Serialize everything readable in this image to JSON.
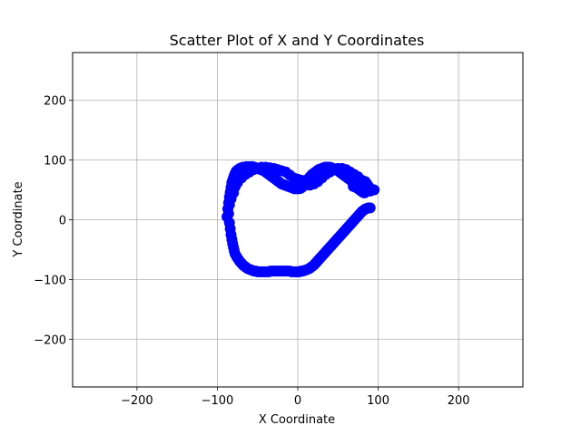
{
  "chart_data": {
    "type": "scatter",
    "title": "Scatter Plot of X and Y Coordinates",
    "xlabel": "X Coordinate",
    "ylabel": "Y Coordinate",
    "xlim": [
      -280,
      280
    ],
    "ylim": [
      -280,
      280
    ],
    "xticks": [
      -200,
      -100,
      0,
      100,
      200
    ],
    "yticks": [
      -200,
      -100,
      0,
      100,
      200
    ],
    "xtick_labels": [
      "−200",
      "−100",
      "0",
      "100",
      "200"
    ],
    "ytick_labels": [
      "−200",
      "−100",
      "0",
      "100",
      "200"
    ],
    "grid": true,
    "marker_color": "#0000ff",
    "series": [
      {
        "x": [
          -88,
          -87,
          -86,
          -85,
          -84,
          -83,
          -82,
          -81,
          -80,
          -79,
          -78,
          -77,
          -76,
          -74,
          -72,
          -70,
          -68,
          -66,
          -64,
          -62,
          -60,
          -58,
          -56,
          -54,
          -52,
          -50,
          -48,
          -46,
          -44,
          -42,
          -40,
          -38,
          -36,
          -34,
          -32,
          -30,
          -28,
          -26,
          -24,
          -22,
          -20,
          -18,
          -16,
          -14,
          -12,
          -10,
          -8,
          -6,
          -4,
          -2,
          0,
          2,
          4,
          6,
          8,
          10,
          12,
          14,
          16,
          18,
          20,
          22,
          24,
          26,
          28,
          30,
          32,
          34,
          36,
          38,
          40,
          42,
          44,
          46,
          48,
          50,
          52,
          54,
          56,
          58,
          60,
          62,
          64,
          66,
          68,
          70,
          72,
          74,
          76,
          78,
          80,
          82,
          84,
          86,
          88,
          90,
          92,
          95,
          -86,
          -85,
          -84,
          -83,
          -82,
          -81,
          -80,
          -79,
          -78,
          -76,
          -74,
          -72,
          -70,
          -68,
          -66,
          -64,
          -62,
          -60,
          -58,
          -56,
          -54,
          -52,
          -50,
          -48,
          -46,
          -44,
          -42,
          -40,
          -38,
          -36,
          -34,
          -32,
          -30,
          -28,
          -26,
          -24,
          -22,
          -20,
          -18,
          -16,
          -14,
          -12,
          -10,
          -8,
          -6,
          -4,
          -2,
          0,
          2,
          4,
          6,
          8,
          10,
          12,
          14,
          16,
          18,
          20,
          22,
          24,
          26,
          28,
          30,
          32,
          34,
          36,
          38,
          40,
          42,
          44,
          46,
          48,
          50,
          52,
          54,
          56,
          58,
          60,
          62,
          64,
          66,
          68,
          70,
          72,
          74,
          76,
          78,
          80,
          82,
          84,
          86,
          88,
          90,
          -85,
          -83,
          -80,
          -78,
          -75,
          -70,
          -65,
          -60,
          -55,
          -50,
          -45,
          -40,
          -35,
          -30,
          -25,
          -20,
          -15,
          -10,
          -5,
          0,
          5,
          10,
          15,
          20,
          25,
          30,
          35,
          40,
          45,
          50,
          55,
          60,
          65,
          70,
          75,
          80,
          85,
          88,
          90,
          78,
          80,
          82,
          84,
          86,
          88,
          90,
          85,
          83,
          81,
          79,
          77,
          75,
          73,
          71,
          69
        ],
        "y": [
          5,
          18,
          28,
          38,
          46,
          54,
          62,
          66,
          70,
          74,
          77,
          80,
          82,
          84,
          86,
          87,
          88,
          88,
          89,
          89,
          89,
          89,
          89,
          88,
          87,
          86,
          85,
          84,
          83,
          82,
          80,
          78,
          76,
          74,
          72,
          70,
          68,
          66,
          64,
          62,
          60,
          59,
          58,
          57,
          56,
          55,
          54,
          53,
          52,
          52,
          52,
          52,
          53,
          55,
          58,
          62,
          66,
          70,
          73,
          76,
          78,
          80,
          82,
          84,
          85,
          86,
          87,
          88,
          88,
          88,
          88,
          87,
          86,
          85,
          84,
          82,
          80,
          78,
          76,
          74,
          72,
          70,
          68,
          66,
          64,
          62,
          60,
          58,
          56,
          55,
          54,
          53,
          52,
          52,
          51,
          51,
          50,
          50,
          10,
          -5,
          -15,
          -25,
          -33,
          -40,
          -46,
          -52,
          -57,
          -62,
          -66,
          -70,
          -73,
          -76,
          -78,
          -80,
          -82,
          -83,
          -84,
          -85,
          -86,
          -86,
          -87,
          -87,
          -87,
          -87,
          -87,
          -87,
          -87,
          -87,
          -86,
          -86,
          -86,
          -86,
          -86,
          -86,
          -86,
          -86,
          -86,
          -86,
          -86,
          -86,
          -86,
          -87,
          -87,
          -87,
          -87,
          -87,
          -87,
          -86,
          -86,
          -85,
          -84,
          -83,
          -82,
          -80,
          -78,
          -76,
          -73,
          -70,
          -67,
          -64,
          -61,
          -58,
          -55,
          -52,
          -49,
          -46,
          -43,
          -40,
          -37,
          -34,
          -31,
          -28,
          -25,
          -22,
          -19,
          -16,
          -13,
          -10,
          -7,
          -4,
          -1,
          2,
          5,
          8,
          11,
          14,
          16,
          18,
          19,
          20,
          20,
          25,
          35,
          45,
          55,
          62,
          70,
          76,
          80,
          84,
          86,
          88,
          88,
          87,
          86,
          84,
          82,
          80,
          75,
          70,
          68,
          66,
          62,
          58,
          60,
          64,
          70,
          76,
          80,
          84,
          86,
          86,
          84,
          80,
          76,
          72,
          66,
          60,
          55,
          48,
          55,
          60,
          62,
          64,
          60,
          56,
          52,
          48,
          45,
          46,
          48,
          50,
          52,
          54,
          55,
          56
        ]
      }
    ]
  }
}
